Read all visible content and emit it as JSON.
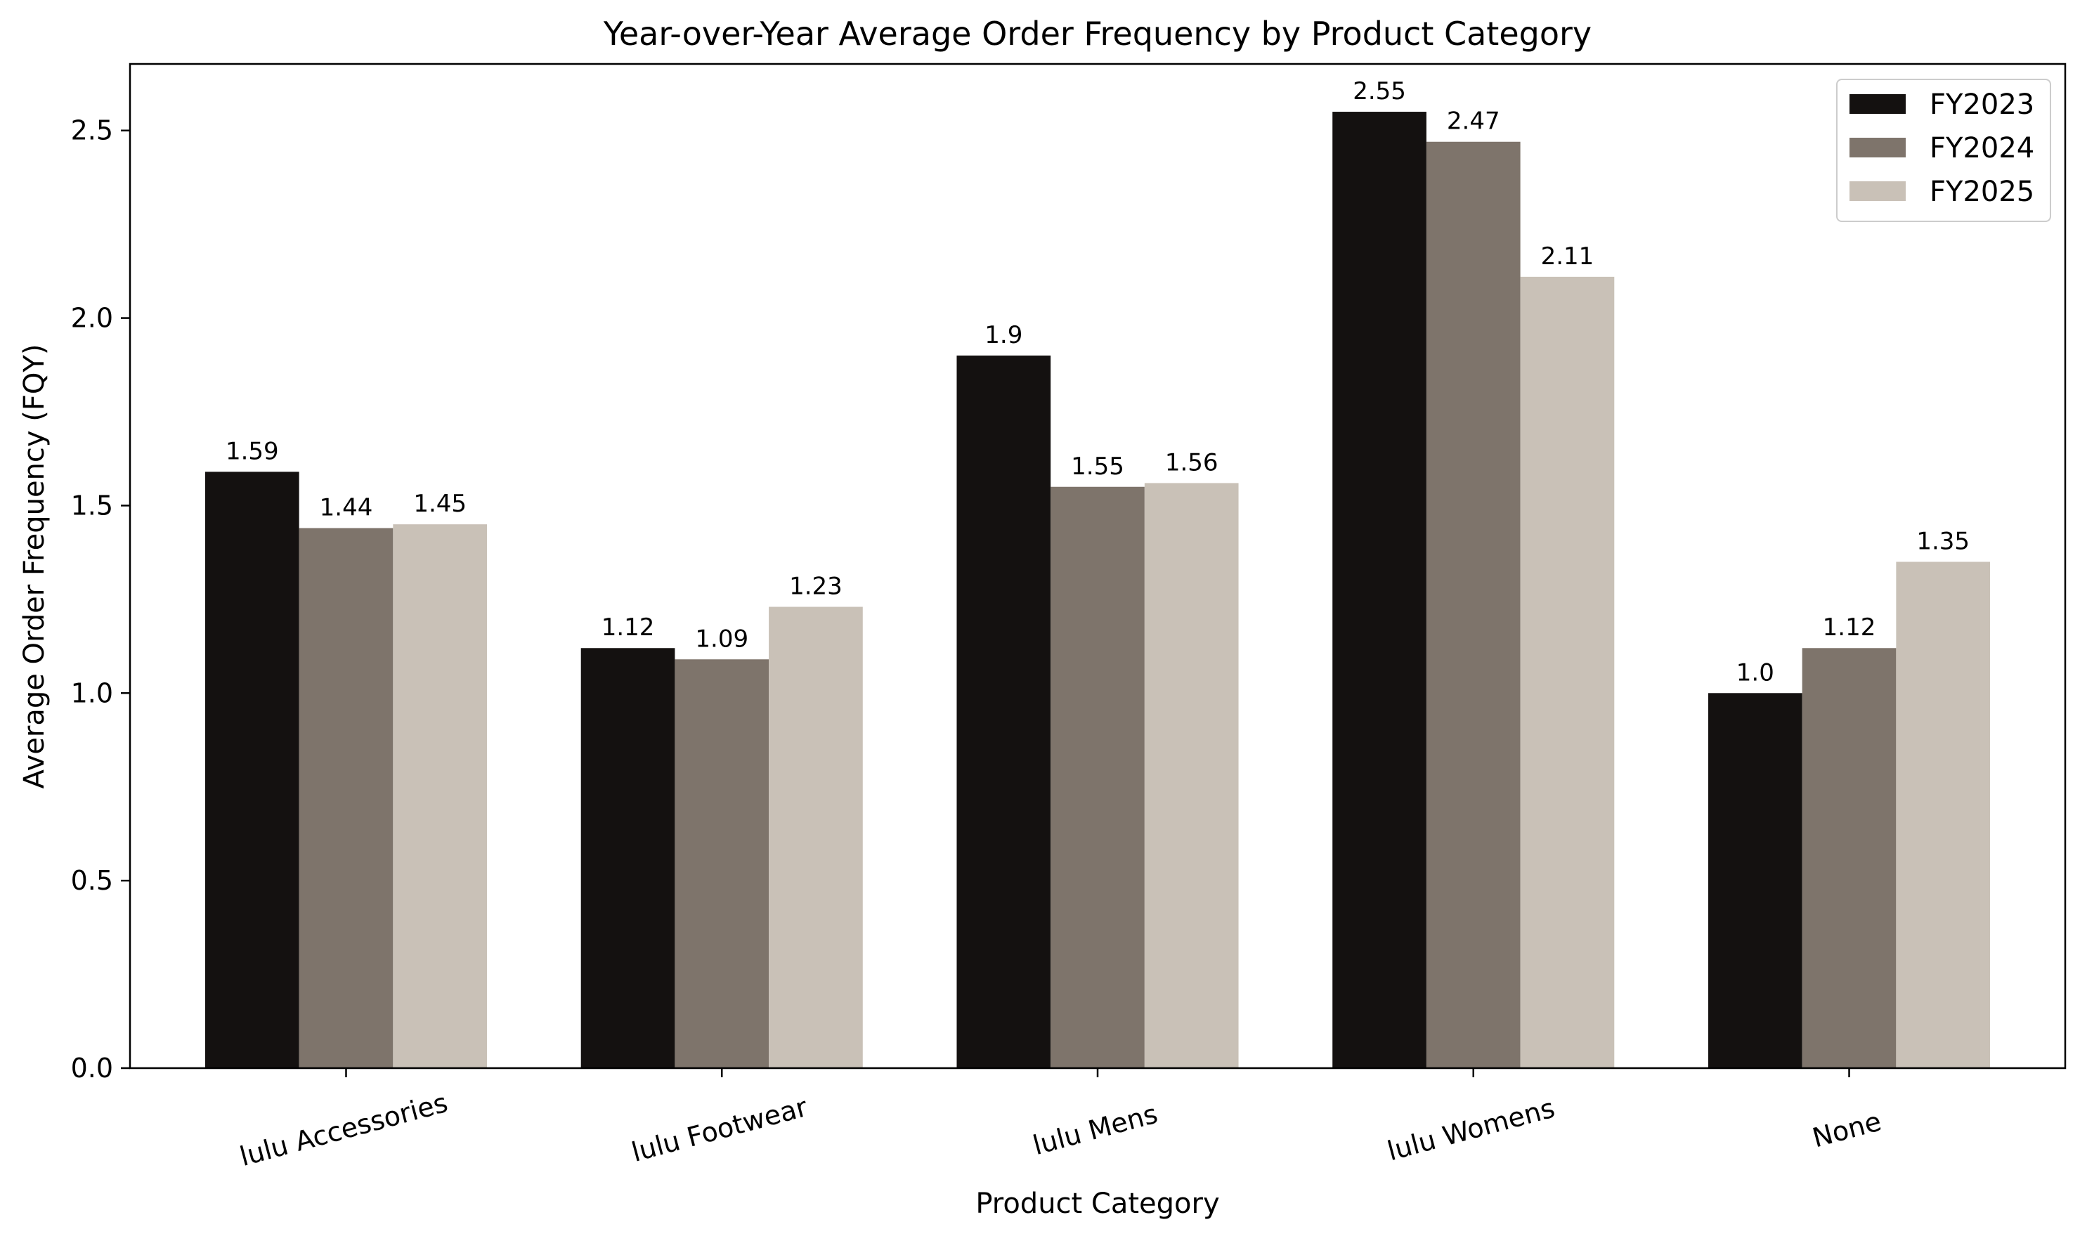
{
  "chart_data": {
    "type": "bar",
    "title": "Year-over-Year Average Order Frequency by Product Category",
    "xlabel": "Product Category",
    "ylabel": "Average Order Frequency (FQY)",
    "categories": [
      "lulu Accessories",
      "lulu Footwear",
      "lulu Mens",
      "lulu Womens",
      "None"
    ],
    "series": [
      {
        "name": "FY2023",
        "color": "#141110",
        "values": [
          1.59,
          1.12,
          1.9,
          2.55,
          1.0
        ],
        "labels": [
          "1.59",
          "1.12",
          "1.9",
          "2.55",
          "1.0"
        ]
      },
      {
        "name": "FY2024",
        "color": "#7e746b",
        "values": [
          1.44,
          1.09,
          1.55,
          2.47,
          1.12
        ],
        "labels": [
          "1.44",
          "1.09",
          "1.55",
          "2.47",
          "1.12"
        ]
      },
      {
        "name": "FY2025",
        "color": "#c9c1b7",
        "values": [
          1.45,
          1.23,
          1.56,
          2.11,
          1.35
        ],
        "labels": [
          "1.45",
          "1.23",
          "1.56",
          "2.11",
          "1.35"
        ]
      }
    ],
    "yticks": [
      {
        "value": 0.0,
        "label": "0.0"
      },
      {
        "value": 0.5,
        "label": "0.5"
      },
      {
        "value": 1.0,
        "label": "1.0"
      },
      {
        "value": 1.5,
        "label": "1.5"
      },
      {
        "value": 2.0,
        "label": "2.0"
      },
      {
        "value": 2.5,
        "label": "2.5"
      }
    ],
    "ylim": [
      0,
      2.6775
    ],
    "xtick_rotation_deg": 15,
    "grid": false,
    "legend": "top-right"
  }
}
